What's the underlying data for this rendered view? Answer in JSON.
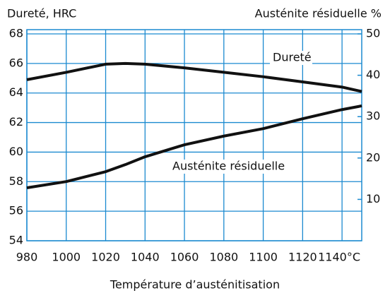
{
  "chart_data": {
    "type": "line",
    "title_left": "Dureté, HRC",
    "title_right": "Austénite résiduelle %",
    "xlabel": "Température d’austénitisation",
    "x": [
      980,
      1000,
      1020,
      1030,
      1040,
      1060,
      1080,
      1100,
      1120,
      1140,
      1150
    ],
    "series": [
      {
        "name": "Dureté",
        "color": "#111111",
        "values": [
          64.9,
          65.4,
          65.95,
          66.0,
          65.95,
          65.7,
          65.4,
          65.1,
          64.75,
          64.4,
          64.1
        ]
      },
      {
        "name": "Austénite résiduelle",
        "color": "#111111",
        "axis": "y2",
        "values": [
          12.8,
          14.3,
          16.7,
          18.4,
          20.3,
          23.2,
          25.3,
          27.1,
          29.5,
          31.7,
          32.6
        ]
      }
    ],
    "xlim": [
      980,
      1150
    ],
    "xticks": [
      980,
      1000,
      1020,
      1040,
      1060,
      1080,
      1100,
      1120,
      {
        "value": 1140,
        "label": "1140°C"
      }
    ],
    "ylim": [
      54,
      68
    ],
    "yticks": [
      54,
      56,
      58,
      60,
      62,
      64,
      66,
      68
    ],
    "y2lim": [
      0,
      50
    ],
    "y2ticks": [
      10,
      20,
      30,
      40,
      50
    ],
    "grid": true,
    "grid_color": "#1b8ad0"
  }
}
